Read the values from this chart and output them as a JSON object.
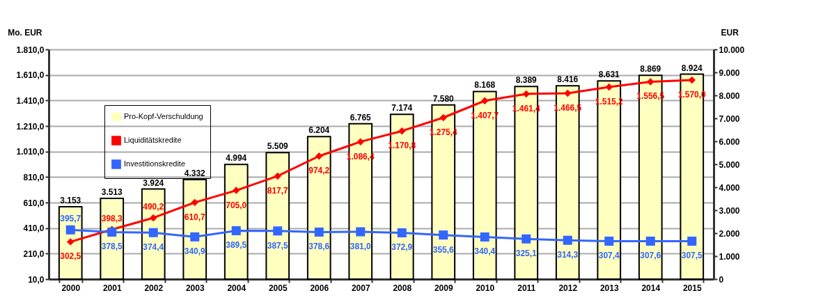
{
  "chart_data": {
    "type": "bar",
    "ylabel": "Mo. EUR",
    "y2label": "EUR",
    "categories": [
      "2000",
      "2001",
      "2002",
      "2003",
      "2004",
      "2005",
      "2006",
      "2007",
      "2008",
      "2009",
      "2010",
      "2011",
      "2012",
      "2013",
      "2014",
      "2015"
    ],
    "series": [
      {
        "name": "Pro-Kopf-Verschuldung",
        "axis": "y2",
        "color": "#ffffc0",
        "values": [
          3153,
          3513,
          3924,
          4332,
          4994,
          5509,
          6204,
          6765,
          7174,
          7580,
          8168,
          8389,
          8416,
          8631,
          8869,
          8924
        ],
        "value_labels": [
          "3.153",
          "3.513",
          "3.924",
          "4.332",
          "4.994",
          "5.509",
          "6.204",
          "6.765",
          "7.174",
          "7.580",
          "8.168",
          "8.389",
          "8.416",
          "8.631",
          "8.869",
          "8.924"
        ]
      },
      {
        "name": "Liquiditätskredite",
        "type": "line",
        "marker": "diamond",
        "color": "#ff0000",
        "values": [
          302.5,
          398.3,
          490.2,
          610.7,
          705.0,
          817.7,
          974.2,
          1086.4,
          1170.8,
          1275.4,
          1407.7,
          1461.4,
          1466.5,
          1515.2,
          1556.5,
          1570.0
        ],
        "value_labels": [
          "302,5",
          "398,3",
          "490,2",
          "610,7",
          "705,0",
          "817,7",
          "974,2",
          "1.086,4",
          "1.170,8",
          "1.275,4",
          "1.407,7",
          "1.461,4",
          "1.466,5",
          "1.515,2",
          "1.556,5",
          "1.570,0"
        ]
      },
      {
        "name": "Investitionskredite",
        "type": "line",
        "marker": "square",
        "color": "#3366ff",
        "values": [
          395.7,
          378.5,
          374.4,
          340.9,
          389.5,
          387.5,
          378.6,
          381.0,
          372.9,
          355.6,
          340.4,
          325.1,
          314.3,
          307.4,
          307.6,
          307.5
        ],
        "value_labels": [
          "395,7",
          "378,5",
          "374,4",
          "340,9",
          "389,5",
          "387,5",
          "378,6",
          "381,0",
          "372,9",
          "355,6",
          "340,4",
          "325,1",
          "314,3",
          "307,4",
          "307,6",
          "307,5"
        ]
      }
    ],
    "ylim": [
      10,
      1810
    ],
    "yticks": [
      {
        "value": 10,
        "label": "10,0"
      },
      {
        "value": 210,
        "label": "210,0"
      },
      {
        "value": 410,
        "label": "410,0"
      },
      {
        "value": 610,
        "label": "610,0"
      },
      {
        "value": 810,
        "label": "810,0"
      },
      {
        "value": 1010,
        "label": "1.010,0"
      },
      {
        "value": 1210,
        "label": "1.210,0"
      },
      {
        "value": 1410,
        "label": "1.410,0"
      },
      {
        "value": 1610,
        "label": "1.610,0"
      },
      {
        "value": 1810,
        "label": "1.810,0"
      }
    ],
    "y2lim": [
      0,
      10000
    ],
    "y2ticks": [
      0,
      {
        "value": 1000,
        "label": "1.000"
      },
      {
        "value": 2000,
        "label": "2.000"
      },
      {
        "value": 3000,
        "label": "3.000"
      },
      {
        "value": 4000,
        "label": "4.000"
      },
      {
        "value": 5000,
        "label": "5.000"
      },
      {
        "value": 6000,
        "label": "6.000"
      },
      {
        "value": 7000,
        "label": "7.000"
      },
      {
        "value": 8000,
        "label": "8.000"
      },
      {
        "value": 9000,
        "label": "9.000"
      },
      {
        "value": 10000,
        "label": "10.000"
      }
    ],
    "grid": "y",
    "legend": "top left"
  }
}
